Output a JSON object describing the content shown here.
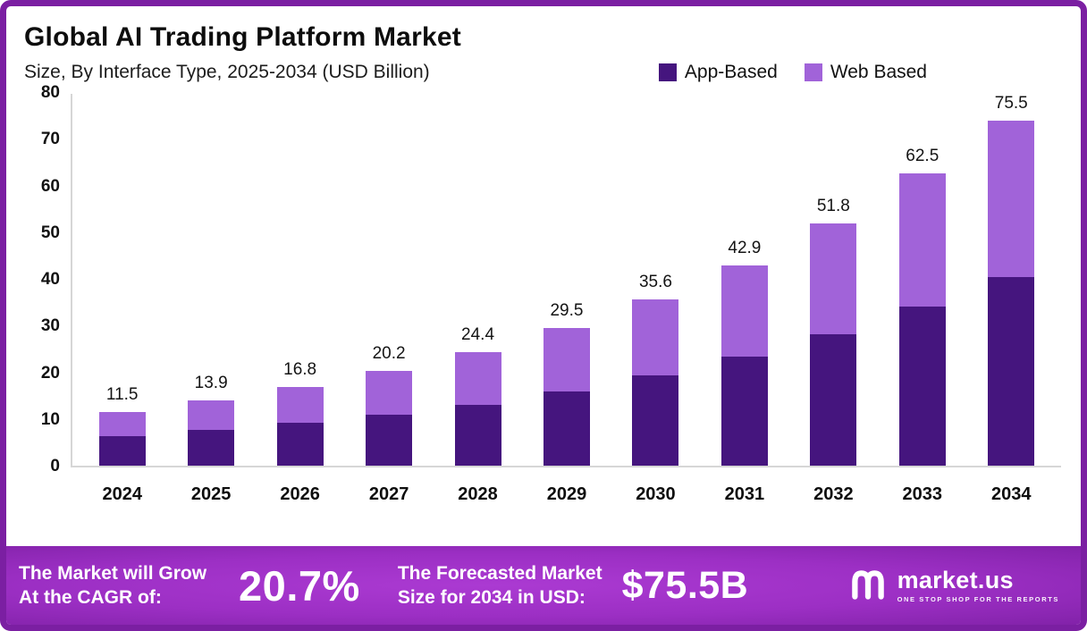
{
  "header": {
    "title": "Global AI Trading Platform Market",
    "subtitle": "Size, By Interface Type, 2025-2034 (USD Billion)"
  },
  "legend": [
    {
      "label": "App-Based",
      "color": "#45157e"
    },
    {
      "label": "Web Based",
      "color": "#a163d9"
    }
  ],
  "chart_data": {
    "type": "bar",
    "stacked": true,
    "title": "Global AI Trading Platform Market Size, By Interface Type, 2025-2034 (USD Billion)",
    "categories": [
      "2024",
      "2025",
      "2026",
      "2027",
      "2028",
      "2029",
      "2030",
      "2031",
      "2032",
      "2033",
      "2034"
    ],
    "series": [
      {
        "name": "App-Based",
        "color": "#45157e",
        "values": [
          6.3,
          7.6,
          9.1,
          10.9,
          13.0,
          15.9,
          19.4,
          23.4,
          28.2,
          34.0,
          41.2
        ]
      },
      {
        "name": "Web Based",
        "color": "#a163d9",
        "values": [
          5.2,
          6.3,
          7.7,
          9.3,
          11.4,
          13.6,
          16.2,
          19.5,
          23.6,
          28.5,
          34.3
        ]
      }
    ],
    "totals": [
      11.5,
      13.9,
      16.8,
      20.2,
      24.4,
      29.5,
      35.6,
      42.9,
      51.8,
      62.5,
      75.5
    ],
    "xlabel": "",
    "ylabel": "",
    "ylim": [
      0,
      80
    ],
    "yticks": [
      0,
      10,
      20,
      30,
      40,
      50,
      60,
      70,
      80
    ],
    "grid": false,
    "legend_position": "top-right"
  },
  "banner": {
    "cagr_label_line1": "The Market will Grow",
    "cagr_label_line2": "At the CAGR of:",
    "cagr_value": "20.7%",
    "forecast_label_line1": "The Forecasted Market",
    "forecast_label_line2": "Size for 2034 in USD:",
    "forecast_value": "$75.5B",
    "logo_text": "market.us",
    "logo_tagline": "One Stop Shop For The Reports"
  }
}
